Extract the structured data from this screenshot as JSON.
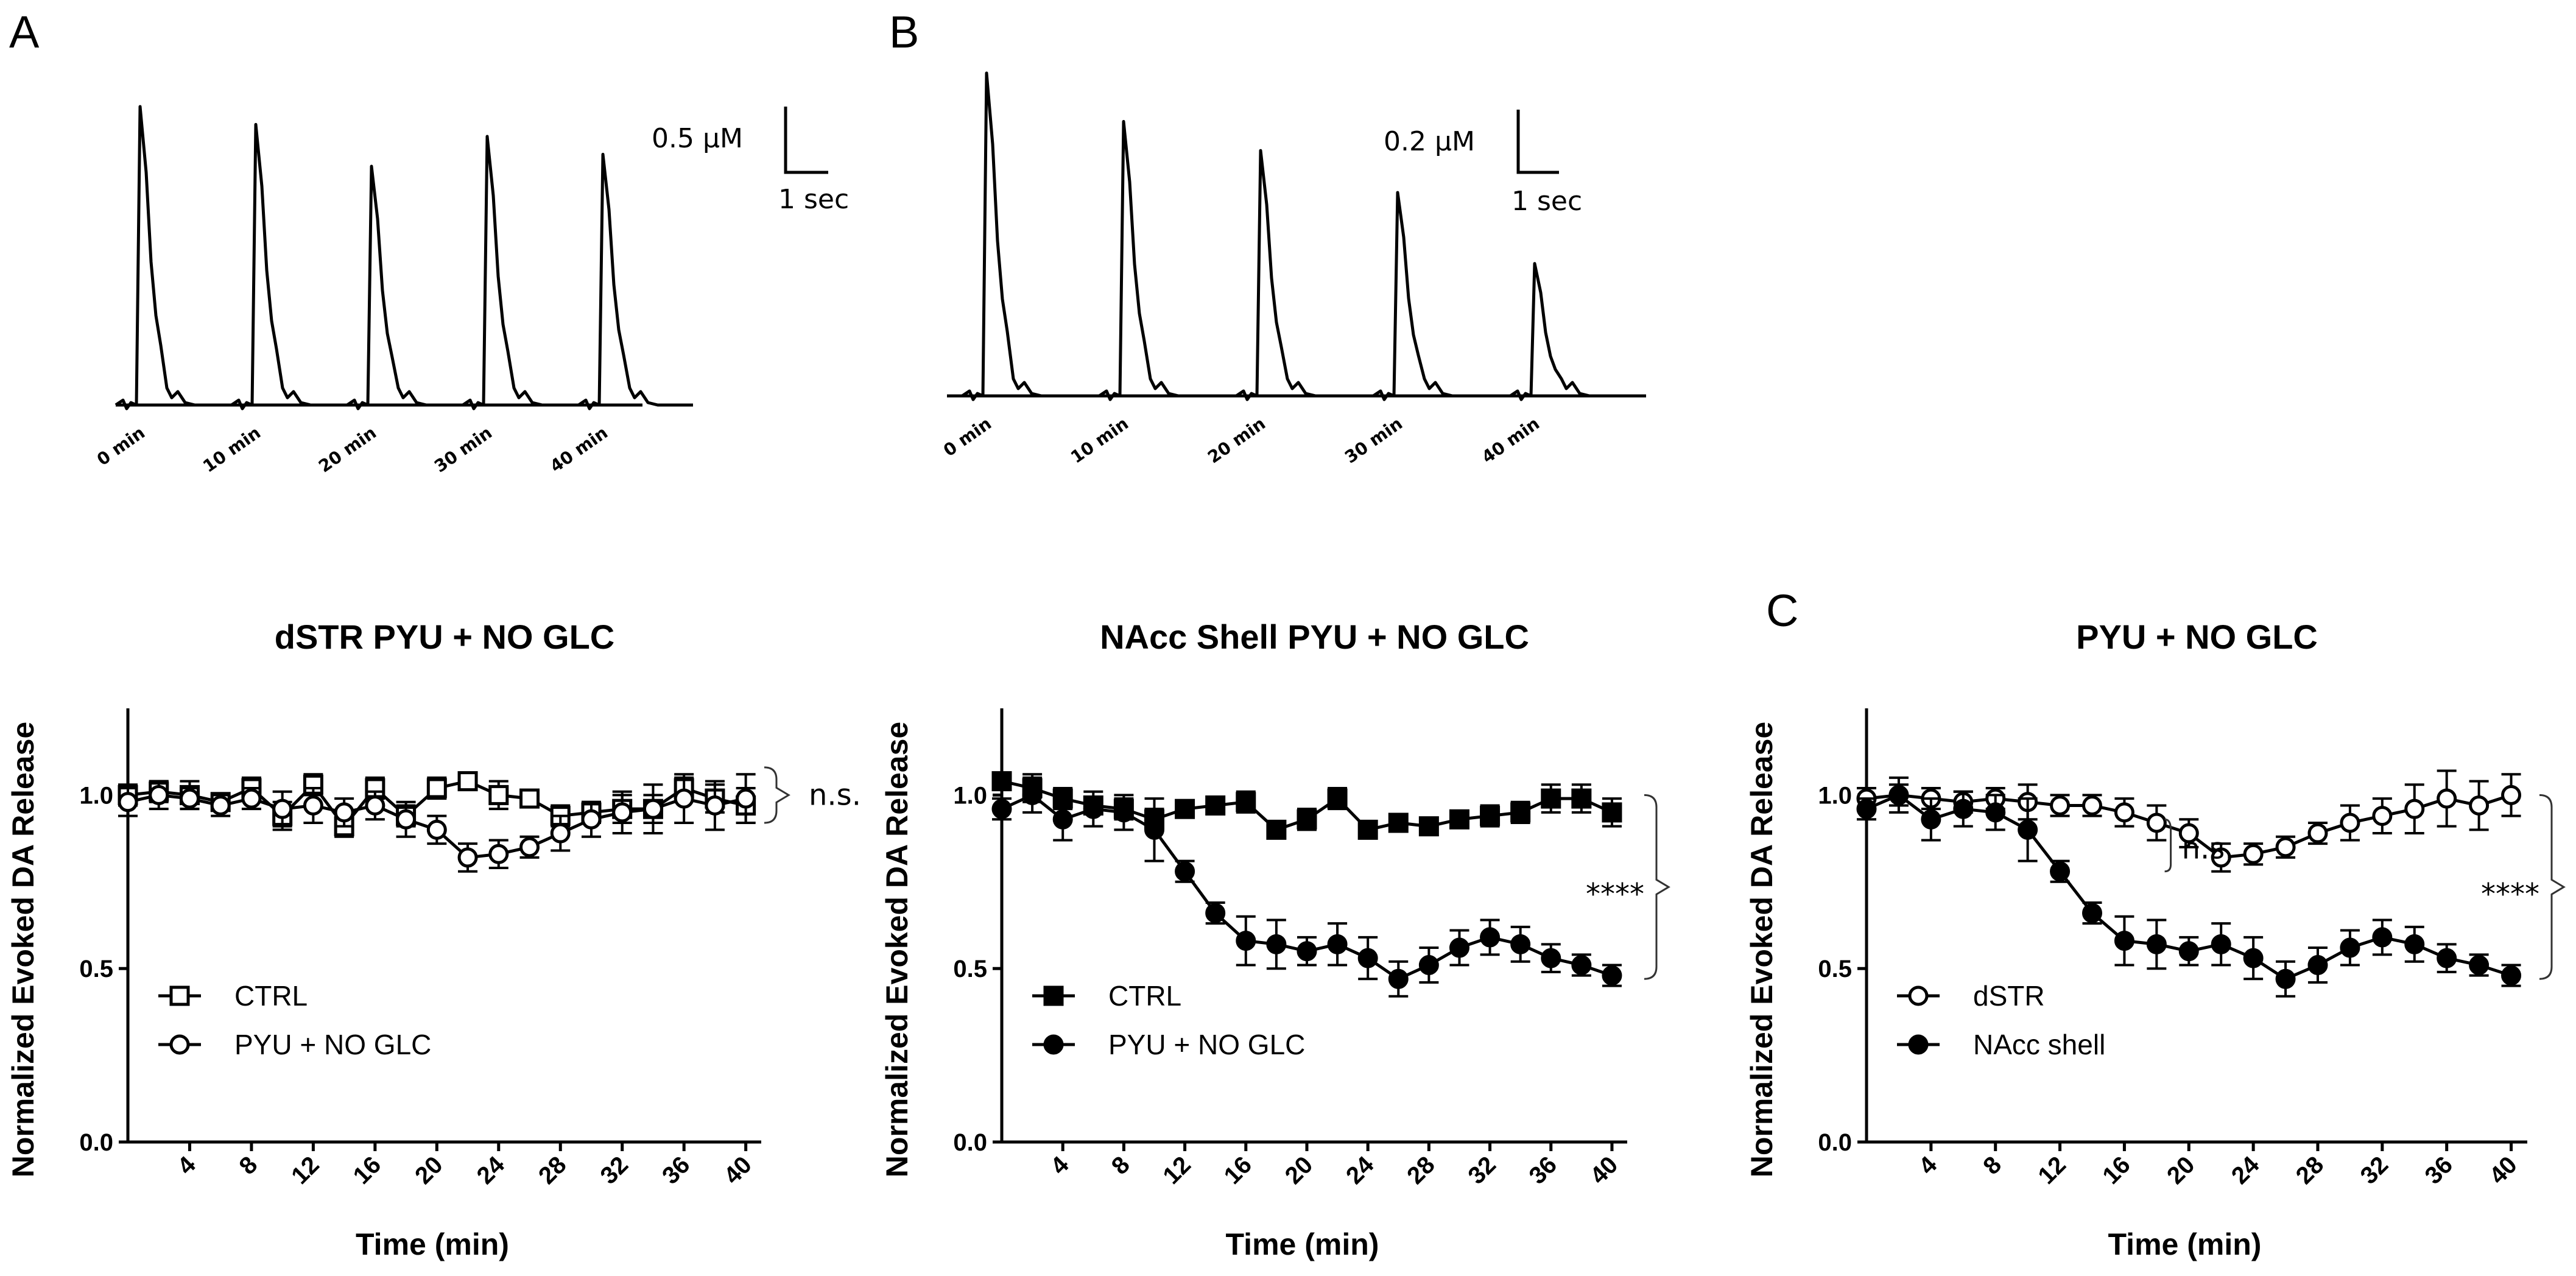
{
  "figure": {
    "panel_letters": [
      "A",
      "B",
      "C"
    ],
    "traces": [
      {
        "scale_y": "0.5 µM",
        "scale_x": "1 sec",
        "labels": [
          "0 min",
          "10 min",
          "20 min",
          "30 min",
          "40 min"
        ],
        "peaks": [
          1.0,
          0.94,
          0.8,
          0.9,
          0.84
        ]
      },
      {
        "scale_y": "0.2 µM",
        "scale_x": "1 sec",
        "labels": [
          "0 min",
          "10 min",
          "20 min",
          "30 min",
          "40 min"
        ],
        "peaks": [
          1.0,
          0.85,
          0.76,
          0.63,
          0.41
        ]
      }
    ]
  },
  "chart_data": [
    {
      "type": "line",
      "title": "dSTR PYU + NO GLC",
      "xlabel": "Time (min)",
      "ylabel": "Normalized Evoked DA Release",
      "x": [
        0,
        2,
        4,
        6,
        8,
        10,
        12,
        14,
        16,
        18,
        20,
        22,
        24,
        26,
        28,
        30,
        32,
        34,
        36,
        38,
        40
      ],
      "xticks": [
        4,
        8,
        12,
        16,
        20,
        24,
        28,
        32,
        36,
        40
      ],
      "xtick_labels": [
        "4",
        "8",
        "12",
        "16",
        "20",
        "24",
        "28",
        "32",
        "36",
        "40"
      ],
      "xlim": [
        0,
        41
      ],
      "ylim": [
        0,
        1.25
      ],
      "yticks": [
        0.0,
        0.5,
        1.0
      ],
      "ytick_labels": [
        "0.0",
        "0.5",
        "1.0"
      ],
      "series": [
        {
          "name": "CTRL",
          "marker": "open-square",
          "values": [
            1.0,
            1.01,
            1.0,
            0.98,
            1.02,
            0.94,
            1.03,
            0.91,
            1.02,
            0.94,
            1.02,
            1.04,
            1.0,
            0.99,
            0.94,
            0.95,
            0.96,
            0.96,
            1.02,
            0.99,
            0.97
          ],
          "errors": [
            0.03,
            0.03,
            0.04,
            0.02,
            0.03,
            0.04,
            0.03,
            0.03,
            0.03,
            0.03,
            0.03,
            0.02,
            0.04,
            0.02,
            0.03,
            0.03,
            0.04,
            0.04,
            0.03,
            0.04,
            0.05
          ]
        },
        {
          "name": "PYU + NO GLC",
          "marker": "open-circle",
          "values": [
            0.98,
            1.0,
            0.99,
            0.97,
            0.99,
            0.96,
            0.97,
            0.95,
            0.97,
            0.93,
            0.9,
            0.82,
            0.83,
            0.85,
            0.89,
            0.93,
            0.95,
            0.96,
            0.99,
            0.97,
            0.99
          ],
          "errors": [
            0.04,
            0.04,
            0.03,
            0.03,
            0.03,
            0.05,
            0.05,
            0.04,
            0.04,
            0.05,
            0.04,
            0.04,
            0.04,
            0.03,
            0.05,
            0.05,
            0.06,
            0.07,
            0.07,
            0.07,
            0.07
          ]
        }
      ],
      "legend": [
        "CTRL",
        "PYU + NO GLC"
      ],
      "legend_position": "bottom-left",
      "annotation": "n.s."
    },
    {
      "type": "line",
      "title": "NAcc Shell PYU + NO GLC",
      "xlabel": "Time (min)",
      "ylabel": "Normalized Evoked DA Release",
      "x": [
        0,
        2,
        4,
        6,
        8,
        10,
        12,
        14,
        16,
        18,
        20,
        22,
        24,
        26,
        28,
        30,
        32,
        34,
        36,
        38,
        40
      ],
      "xticks": [
        4,
        8,
        12,
        16,
        20,
        24,
        28,
        32,
        36,
        40
      ],
      "xtick_labels": [
        "4",
        "8",
        "12",
        "16",
        "20",
        "24",
        "28",
        "32",
        "36",
        "40"
      ],
      "xlim": [
        0,
        41
      ],
      "ylim": [
        0,
        1.25
      ],
      "yticks": [
        0.0,
        0.5,
        1.0
      ],
      "ytick_labels": [
        "0.0",
        "0.5",
        "1.0"
      ],
      "series": [
        {
          "name": "CTRL",
          "marker": "filled-square",
          "values": [
            1.04,
            1.02,
            0.99,
            0.97,
            0.96,
            0.93,
            0.96,
            0.97,
            0.98,
            0.9,
            0.93,
            0.99,
            0.9,
            0.92,
            0.91,
            0.93,
            0.94,
            0.95,
            0.99,
            0.99,
            0.95
          ],
          "errors": [
            0.02,
            0.04,
            0.03,
            0.02,
            0.03,
            0.03,
            0.02,
            0.02,
            0.03,
            0.02,
            0.03,
            0.03,
            0.02,
            0.02,
            0.02,
            0.02,
            0.03,
            0.03,
            0.04,
            0.04,
            0.04
          ]
        },
        {
          "name": "PYU + NO GLC",
          "marker": "filled-circle",
          "values": [
            0.96,
            1.0,
            0.93,
            0.96,
            0.95,
            0.9,
            0.78,
            0.66,
            0.58,
            0.57,
            0.55,
            0.57,
            0.53,
            0.47,
            0.51,
            0.56,
            0.59,
            0.57,
            0.53,
            0.51,
            0.48
          ],
          "errors": [
            0.03,
            0.05,
            0.06,
            0.05,
            0.05,
            0.09,
            0.03,
            0.03,
            0.07,
            0.07,
            0.04,
            0.06,
            0.06,
            0.05,
            0.05,
            0.05,
            0.05,
            0.05,
            0.04,
            0.03,
            0.03
          ]
        }
      ],
      "legend": [
        "CTRL",
        "PYU + NO GLC"
      ],
      "legend_position": "bottom-left",
      "annotation": "****"
    },
    {
      "type": "line",
      "title": "PYU + NO GLC",
      "xlabel": "Time (min)",
      "ylabel": "Normalized Evoked DA Release",
      "x": [
        0,
        2,
        4,
        6,
        8,
        10,
        12,
        14,
        16,
        18,
        20,
        22,
        24,
        26,
        28,
        30,
        32,
        34,
        36,
        38,
        40
      ],
      "xticks": [
        4,
        8,
        12,
        16,
        20,
        24,
        28,
        32,
        36,
        40
      ],
      "xtick_labels": [
        "4",
        "8",
        "12",
        "16",
        "20",
        "24",
        "28",
        "32",
        "36",
        "40"
      ],
      "xlim": [
        0,
        41
      ],
      "ylim": [
        0,
        1.25
      ],
      "yticks": [
        0.0,
        0.5,
        1.0
      ],
      "ytick_labels": [
        "0.0",
        "0.5",
        "1.0"
      ],
      "series": [
        {
          "name": "dSTR",
          "marker": "open-circle",
          "values": [
            0.99,
            1.0,
            0.99,
            0.98,
            0.99,
            0.98,
            0.97,
            0.97,
            0.95,
            0.92,
            0.89,
            0.82,
            0.83,
            0.85,
            0.89,
            0.92,
            0.94,
            0.96,
            0.99,
            0.97,
            1.0
          ],
          "errors": [
            0.03,
            0.03,
            0.03,
            0.03,
            0.03,
            0.05,
            0.03,
            0.03,
            0.04,
            0.05,
            0.04,
            0.04,
            0.03,
            0.03,
            0.03,
            0.05,
            0.05,
            0.07,
            0.08,
            0.07,
            0.06
          ]
        },
        {
          "name": "NAcc shell",
          "marker": "filled-circle",
          "values": [
            0.96,
            1.0,
            0.93,
            0.96,
            0.95,
            0.9,
            0.78,
            0.66,
            0.58,
            0.57,
            0.55,
            0.57,
            0.53,
            0.47,
            0.51,
            0.56,
            0.59,
            0.57,
            0.53,
            0.51,
            0.48
          ],
          "errors": [
            0.03,
            0.05,
            0.06,
            0.05,
            0.05,
            0.09,
            0.03,
            0.03,
            0.07,
            0.07,
            0.04,
            0.06,
            0.06,
            0.05,
            0.05,
            0.05,
            0.05,
            0.05,
            0.04,
            0.03,
            0.03
          ]
        }
      ],
      "legend": [
        "dSTR",
        "NAcc shell"
      ],
      "legend_position": "bottom-left",
      "annotations": [
        "n.s.",
        "****"
      ]
    }
  ]
}
